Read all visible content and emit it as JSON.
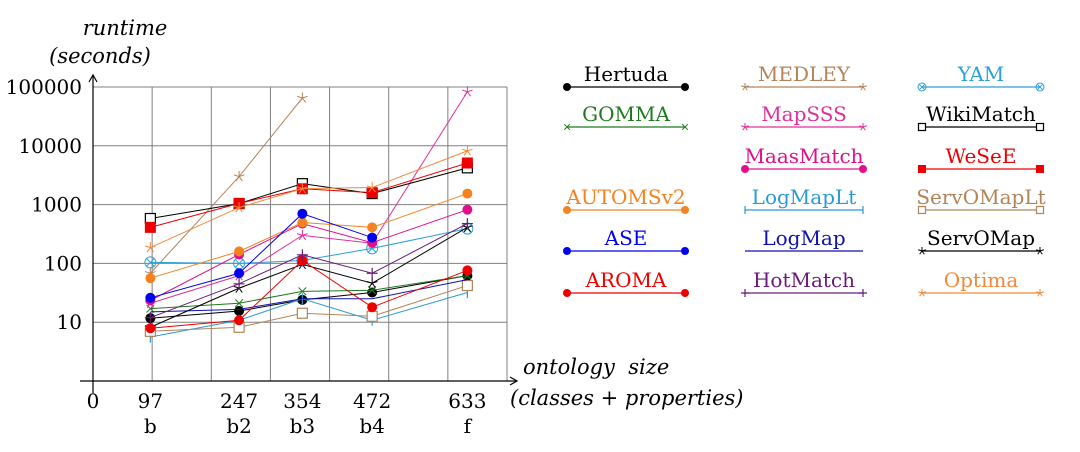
{
  "chart_data": {
    "type": "line",
    "ylabel_line1": "runtime",
    "ylabel_line2": "(seconds)",
    "xlabel_line1": "ontology  size",
    "xlabel_line2": "(classes + properties)",
    "y_scale": "log",
    "ylim": [
      1,
      100000
    ],
    "xlim": [
      0,
      700
    ],
    "grid": true,
    "legend_placement": "right",
    "y_ticks": [
      {
        "value": 10,
        "label": "10"
      },
      {
        "value": 100,
        "label": "100"
      },
      {
        "value": 1000,
        "label": "1000"
      },
      {
        "value": 10000,
        "label": "10000"
      },
      {
        "value": 100000,
        "label": "100000"
      }
    ],
    "x_ticks": [
      {
        "value": 0,
        "label": "0",
        "sublabel": ""
      },
      {
        "value": 97,
        "label": "97",
        "sublabel": "b"
      },
      {
        "value": 247,
        "label": "247",
        "sublabel": "b2"
      },
      {
        "value": 354,
        "label": "354",
        "sublabel": "b3"
      },
      {
        "value": 472,
        "label": "472",
        "sublabel": "b4"
      },
      {
        "value": 633,
        "label": "633",
        "sublabel": "f"
      }
    ],
    "x": [
      97,
      247,
      354,
      472,
      633
    ],
    "series": [
      {
        "name": "Hertuda",
        "color": "#000000",
        "marker": "circle",
        "values": [
          11.7,
          15.5,
          24,
          32,
          62
        ]
      },
      {
        "name": "MEDLEY",
        "color": "#b5835a",
        "marker": "star",
        "values": [
          68,
          3000,
          65000,
          null,
          null
        ]
      },
      {
        "name": "YAM",
        "color": "#2ca0d8",
        "marker": "otimes",
        "values": [
          104,
          100,
          112,
          180,
          390
        ]
      },
      {
        "name": "GOMMA",
        "color": "#1f7a1f",
        "marker": "x",
        "values": [
          17,
          21,
          33.5,
          35,
          62
        ]
      },
      {
        "name": "MapSSS",
        "color": "#e0309a",
        "marker": "star",
        "values": [
          21,
          62,
          300,
          220,
          83000
        ]
      },
      {
        "name": "WikiMatch",
        "color": "#000000",
        "marker": "square-open",
        "values": [
          580,
          1040,
          2270,
          1540,
          4220
        ]
      },
      {
        "name": "MaasMatch",
        "color": "#e0108a",
        "marker": "circle",
        "values": [
          23.5,
          142,
          475,
          225,
          820
        ]
      },
      {
        "name": "WeSeE",
        "color": "#ee0000",
        "marker": "square",
        "values": [
          410,
          1050,
          1860,
          1600,
          5100
        ]
      },
      {
        "name": "AUTOMSv2",
        "color": "#f58220",
        "marker": "circle",
        "values": [
          56,
          160,
          495,
          410,
          1540
        ]
      },
      {
        "name": "LogMapLt",
        "color": "#2a9ad6",
        "marker": "bar",
        "values": [
          5.6,
          10.8,
          25,
          10.8,
          32
        ]
      },
      {
        "name": "ServOMapLt",
        "color": "#b08458",
        "marker": "square-open",
        "values": [
          7,
          8.2,
          14.2,
          12.6,
          42
        ]
      },
      {
        "name": "ASE",
        "color": "#0000ee",
        "marker": "circle",
        "values": [
          26,
          68,
          700,
          275,
          null
        ]
      },
      {
        "name": "LogMap",
        "color": "#1010b0",
        "marker": "none",
        "values": [
          15,
          16.5,
          25,
          25,
          53
        ]
      },
      {
        "name": "ServOMap",
        "color": "#000000",
        "marker": "star",
        "values": [
          8.2,
          38,
          96,
          46,
          410
        ]
      },
      {
        "name": "AROMA",
        "color": "#ee0000",
        "marker": "circle",
        "values": [
          7.9,
          10.8,
          112,
          18,
          76
        ]
      },
      {
        "name": "HotMatch",
        "color": "#6a1a7a",
        "marker": "plus",
        "values": [
          12,
          45,
          140,
          68,
          475
        ]
      },
      {
        "name": "Optima",
        "color": "#f08a3a",
        "marker": "star",
        "values": [
          186,
          890,
          1870,
          1950,
          8200
        ]
      }
    ],
    "legend_grid": [
      [
        "Hertuda",
        "MEDLEY",
        "YAM"
      ],
      [
        "GOMMA",
        "MapSSS",
        "WikiMatch"
      ],
      [
        null,
        "MaasMatch",
        "WeSeE"
      ],
      [
        "AUTOMSv2",
        "LogMapLt",
        "ServOMapLt"
      ],
      [
        "ASE",
        "LogMap",
        "ServOMap"
      ],
      [
        "AROMA",
        "HotMatch",
        "Optima"
      ]
    ]
  }
}
